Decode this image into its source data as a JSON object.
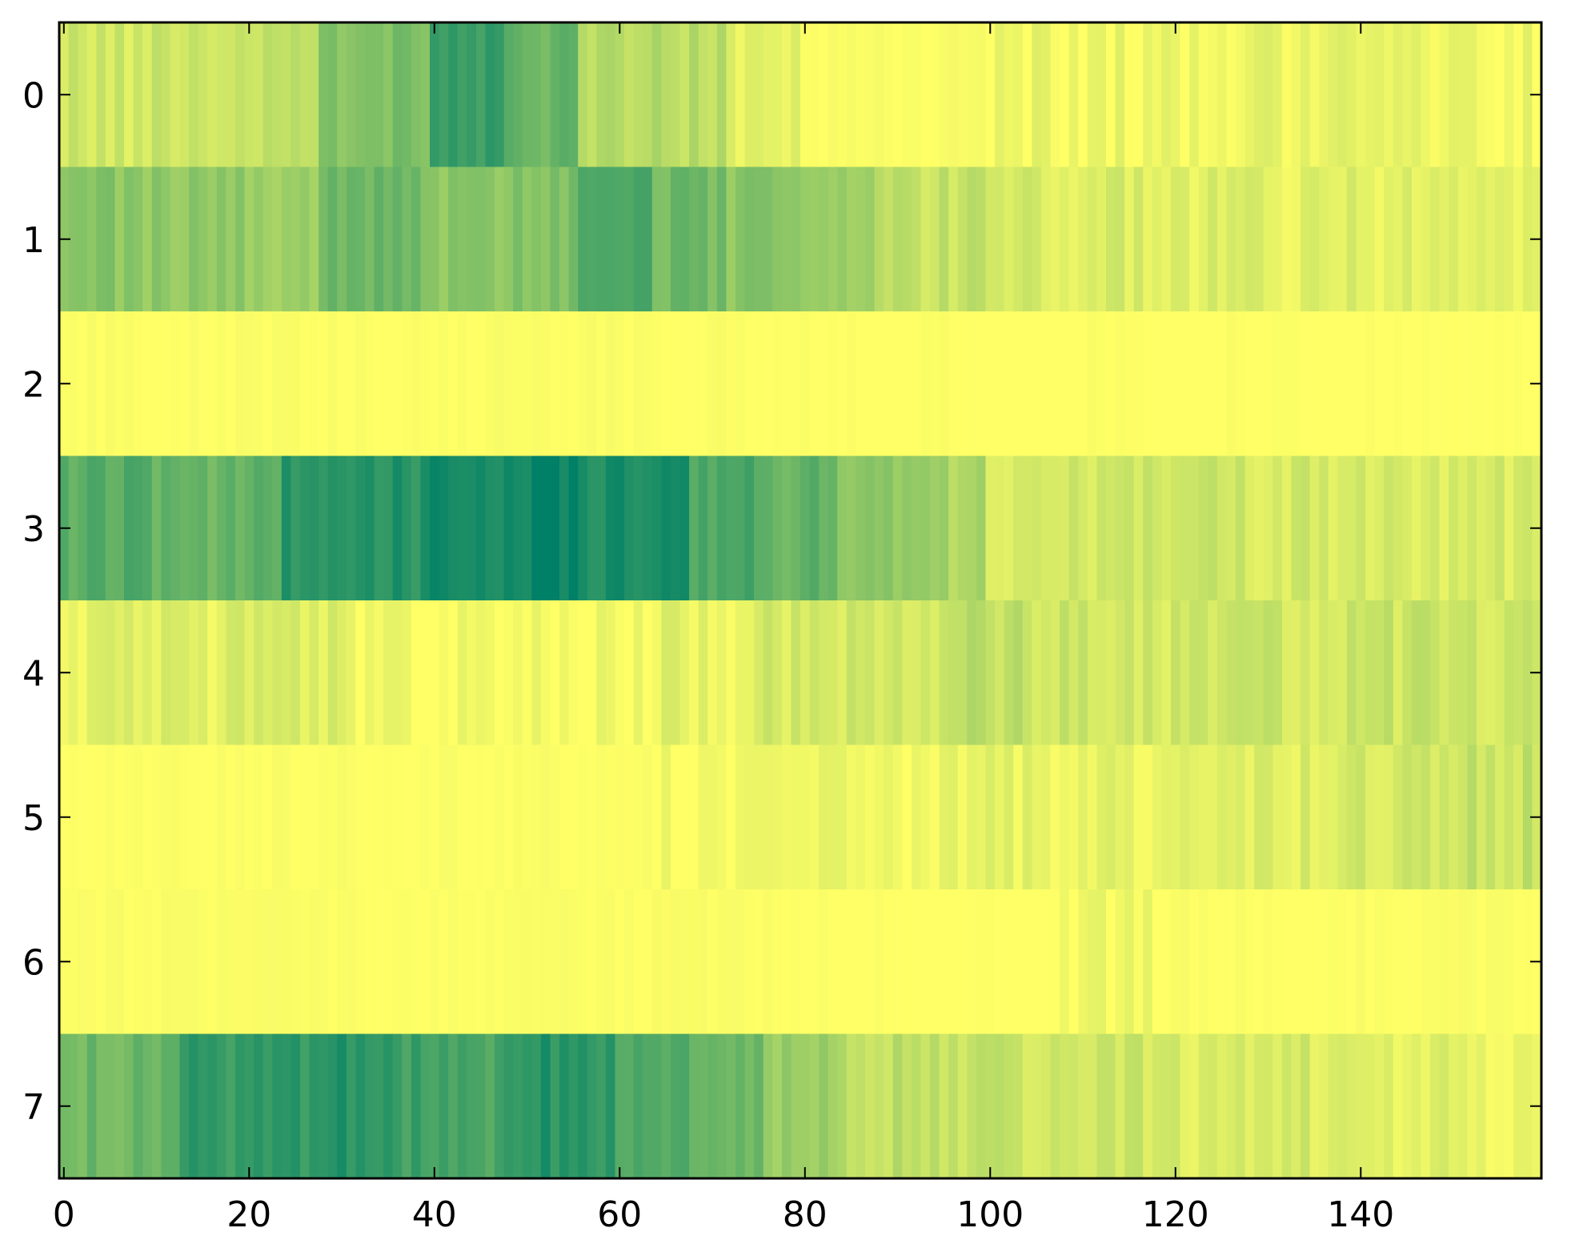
{
  "chart_data": {
    "type": "heatmap",
    "title": "",
    "xlabel": "",
    "ylabel": "",
    "colormap": "summer",
    "colormap_endpoints": [
      "#008066",
      "#ffff66"
    ],
    "grid": false,
    "legend": "none",
    "n_columns": 160,
    "rows": [
      0,
      1,
      2,
      3,
      4,
      5,
      6,
      7
    ],
    "xlim": [
      -0.5,
      159.5
    ],
    "ylim": [
      7.5,
      -0.5
    ],
    "x_ticks": [
      0,
      20,
      40,
      60,
      80,
      100,
      120,
      140
    ],
    "y_ticks": [
      0,
      1,
      2,
      3,
      4,
      5,
      6,
      7
    ],
    "value_range": [
      0,
      1
    ],
    "row_profiles": [
      {
        "row": 0,
        "col_start": [
          0,
          20,
          28,
          40,
          48,
          56,
          72,
          80,
          100,
          120
        ],
        "value": [
          0.82,
          0.75,
          0.5,
          0.25,
          0.42,
          0.72,
          0.9,
          0.98,
          0.95,
          0.93
        ]
      },
      {
        "row": 1,
        "col_start": [
          0,
          20,
          28,
          40,
          48,
          56,
          64,
          72,
          80,
          88,
          100,
          120,
          140
        ],
        "value": [
          0.55,
          0.6,
          0.45,
          0.55,
          0.5,
          0.3,
          0.45,
          0.55,
          0.6,
          0.78,
          0.85,
          0.88,
          0.88
        ]
      },
      {
        "row": 2,
        "col_start": [
          0,
          40,
          80,
          120
        ],
        "value": [
          0.99,
          0.99,
          1.0,
          1.0
        ]
      },
      {
        "row": 3,
        "col_start": [
          0,
          10,
          24,
          40,
          48,
          56,
          68,
          76,
          84,
          96,
          100,
          120,
          140
        ],
        "value": [
          0.35,
          0.4,
          0.15,
          0.1,
          0.05,
          0.12,
          0.3,
          0.4,
          0.58,
          0.7,
          0.82,
          0.82,
          0.85
        ]
      },
      {
        "row": 4,
        "col_start": [
          0,
          10,
          16,
          32,
          48,
          64,
          76,
          96,
          104,
          120,
          140
        ],
        "value": [
          0.9,
          0.85,
          0.88,
          0.96,
          0.97,
          0.9,
          0.84,
          0.74,
          0.82,
          0.82,
          0.8
        ]
      },
      {
        "row": 5,
        "col_start": [
          0,
          40,
          64,
          80,
          100,
          120,
          140,
          150
        ],
        "value": [
          0.99,
          0.99,
          0.97,
          0.95,
          0.9,
          0.88,
          0.84,
          0.78
        ]
      },
      {
        "row": 6,
        "col_start": [
          0,
          40,
          80,
          108,
          120,
          140
        ],
        "value": [
          0.99,
          0.99,
          1.0,
          0.97,
          0.99,
          0.99
        ]
      },
      {
        "row": 7,
        "col_start": [
          0,
          8,
          13,
          20,
          28,
          36,
          44,
          48,
          56,
          60,
          68,
          76,
          84,
          100,
          120,
          140,
          150
        ],
        "value": [
          0.45,
          0.38,
          0.22,
          0.2,
          0.15,
          0.25,
          0.28,
          0.15,
          0.2,
          0.3,
          0.45,
          0.6,
          0.75,
          0.8,
          0.85,
          0.9,
          0.95
        ]
      }
    ]
  }
}
